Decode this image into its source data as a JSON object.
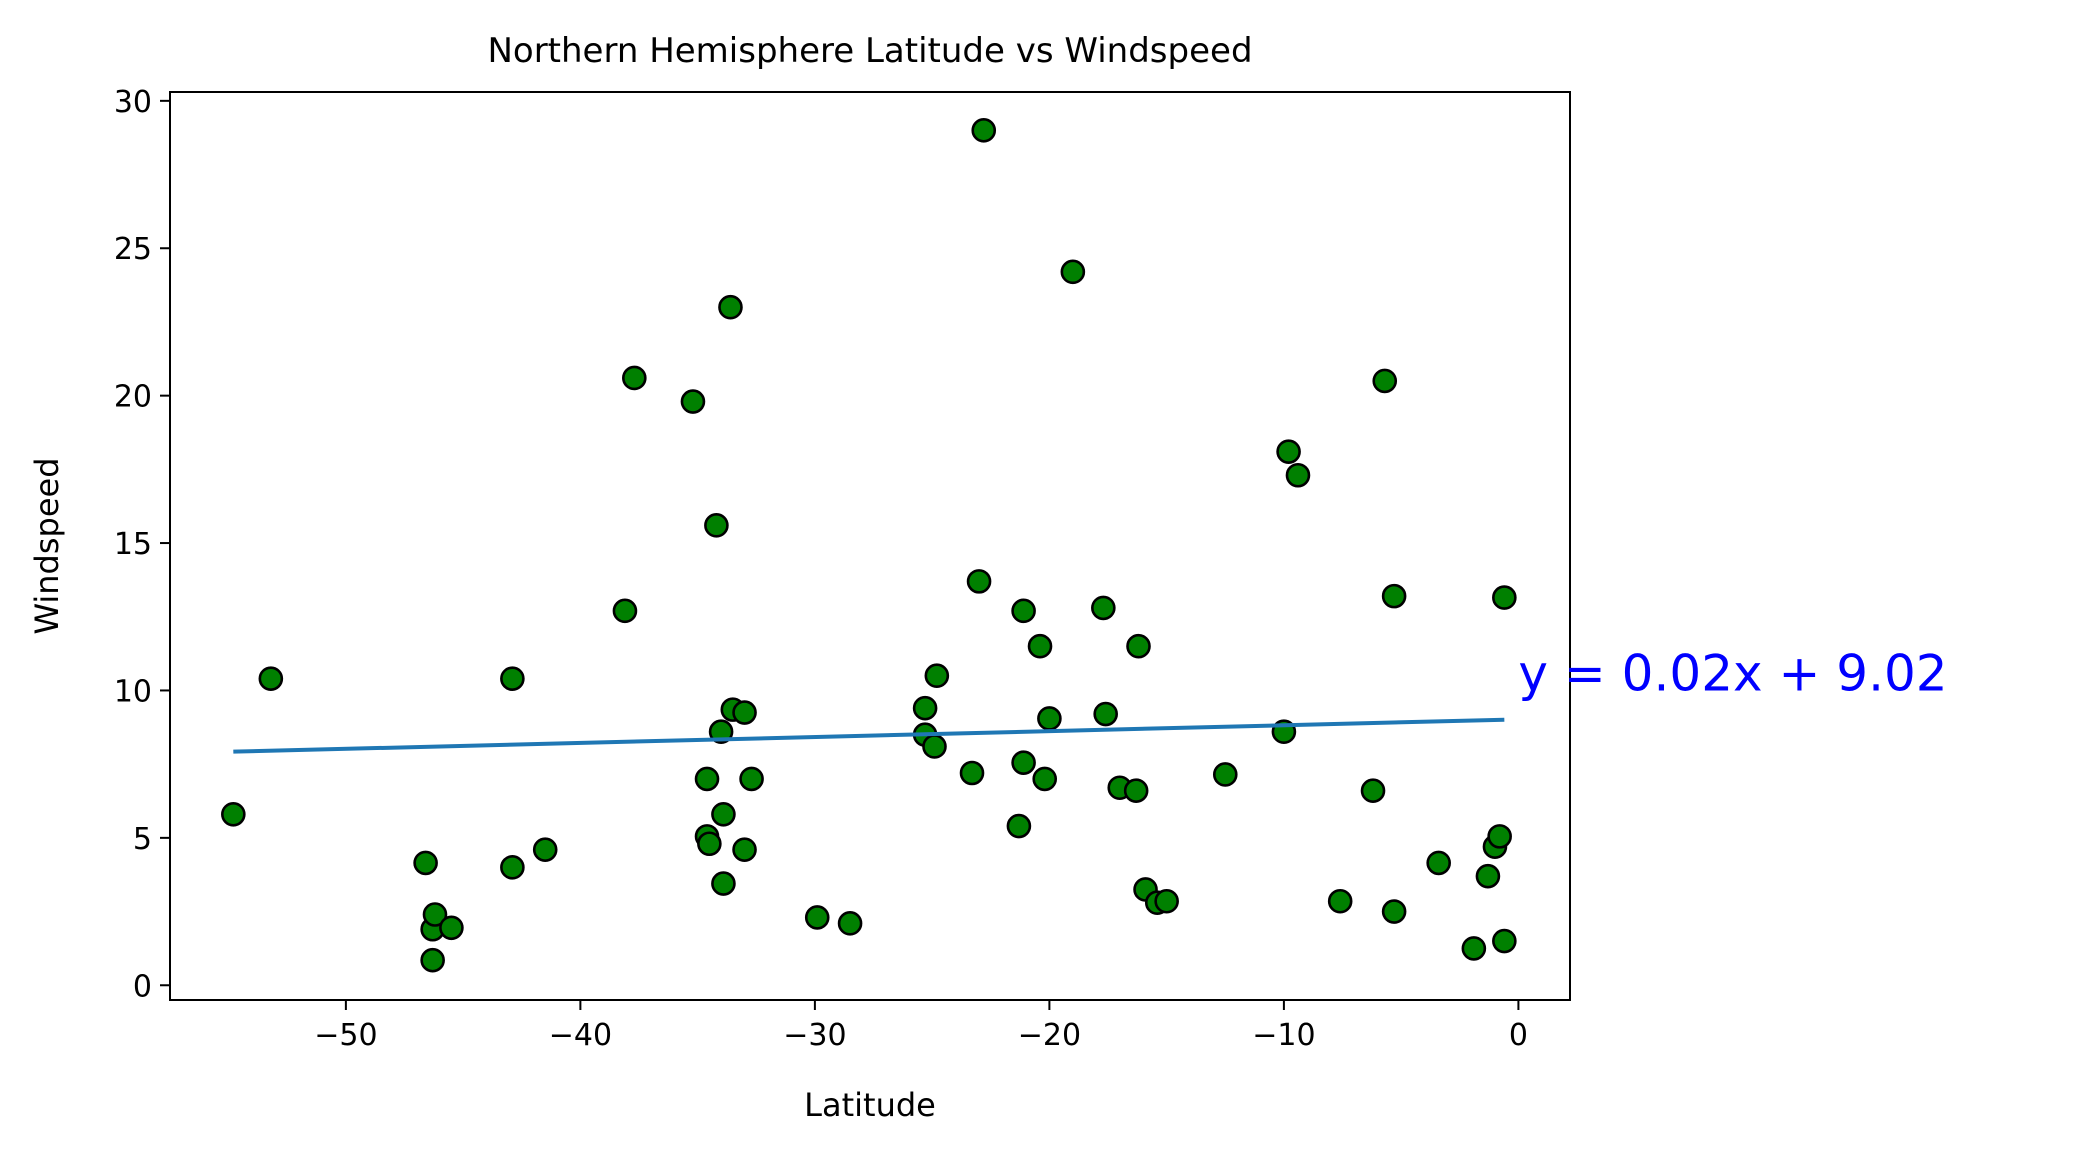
{
  "chart_data": {
    "type": "scatter",
    "title": "Northern Hemisphere Latitude vs Windspeed",
    "xlabel": "Latitude",
    "ylabel": "Windspeed",
    "xlim": [
      -57.5,
      2.2
    ],
    "ylim": [
      -0.5,
      30.3
    ],
    "xticks": [
      -50,
      -40,
      -30,
      -20,
      -10,
      0
    ],
    "xtick_labels": [
      "−50",
      "−40",
      "−30",
      "−20",
      "−10",
      "0"
    ],
    "yticks": [
      0,
      5,
      10,
      15,
      20,
      25,
      30
    ],
    "ytick_labels": [
      "0",
      "5",
      "10",
      "15",
      "20",
      "25",
      "30"
    ],
    "grid": false,
    "marker_color": "#008000",
    "marker_edge_color": "#000000",
    "line_color": "#1f77b4",
    "annotation_color": "#0000ff",
    "points": [
      [
        -54.8,
        5.8
      ],
      [
        -53.2,
        10.4
      ],
      [
        -46.6,
        4.15
      ],
      [
        -46.3,
        1.9
      ],
      [
        -46.3,
        0.85
      ],
      [
        -46.2,
        2.4
      ],
      [
        -45.5,
        1.95
      ],
      [
        -42.9,
        10.4
      ],
      [
        -42.9,
        4.0
      ],
      [
        -41.5,
        4.6
      ],
      [
        -38.1,
        12.7
      ],
      [
        -37.7,
        20.6
      ],
      [
        -35.2,
        19.8
      ],
      [
        -34.6,
        7.0
      ],
      [
        -34.6,
        5.05
      ],
      [
        -34.5,
        4.8
      ],
      [
        -34.2,
        15.6
      ],
      [
        -34.0,
        8.6
      ],
      [
        -33.9,
        5.8
      ],
      [
        -33.9,
        3.45
      ],
      [
        -33.6,
        23.0
      ],
      [
        -33.5,
        9.35
      ],
      [
        -33.0,
        9.25
      ],
      [
        -33.0,
        4.6
      ],
      [
        -32.7,
        7.0
      ],
      [
        -29.9,
        2.3
      ],
      [
        -28.5,
        2.1
      ],
      [
        -25.3,
        9.4
      ],
      [
        -25.3,
        8.5
      ],
      [
        -24.9,
        8.1
      ],
      [
        -24.8,
        10.5
      ],
      [
        -23.3,
        7.2
      ],
      [
        -23.0,
        13.7
      ],
      [
        -22.8,
        29.0
      ],
      [
        -21.3,
        5.4
      ],
      [
        -21.1,
        12.7
      ],
      [
        -21.1,
        7.55
      ],
      [
        -20.4,
        11.5
      ],
      [
        -20.2,
        7.0
      ],
      [
        -20.0,
        9.05
      ],
      [
        -19.0,
        24.2
      ],
      [
        -17.7,
        12.8
      ],
      [
        -17.6,
        9.2
      ],
      [
        -17.0,
        6.7
      ],
      [
        -16.3,
        6.6
      ],
      [
        -16.2,
        11.5
      ],
      [
        -15.9,
        3.25
      ],
      [
        -15.4,
        2.8
      ],
      [
        -15.0,
        2.85
      ],
      [
        -12.5,
        7.15
      ],
      [
        -10.0,
        8.6
      ],
      [
        -9.8,
        18.1
      ],
      [
        -9.4,
        17.3
      ],
      [
        -7.6,
        2.85
      ],
      [
        -6.2,
        6.6
      ],
      [
        -5.7,
        20.5
      ],
      [
        -5.3,
        13.2
      ],
      [
        -5.3,
        2.5
      ],
      [
        -3.4,
        4.15
      ],
      [
        -1.9,
        1.25
      ],
      [
        -1.3,
        3.7
      ],
      [
        -1.0,
        4.7
      ],
      [
        -0.8,
        5.05
      ],
      [
        -0.6,
        13.15
      ],
      [
        -0.6,
        1.5
      ]
    ],
    "regression": {
      "slope": 0.02,
      "intercept": 9.02,
      "x_range": [
        -54.8,
        -0.6
      ],
      "label": "y = 0.02x + 9.02",
      "label_position": [
        0.0,
        10.0
      ]
    }
  }
}
